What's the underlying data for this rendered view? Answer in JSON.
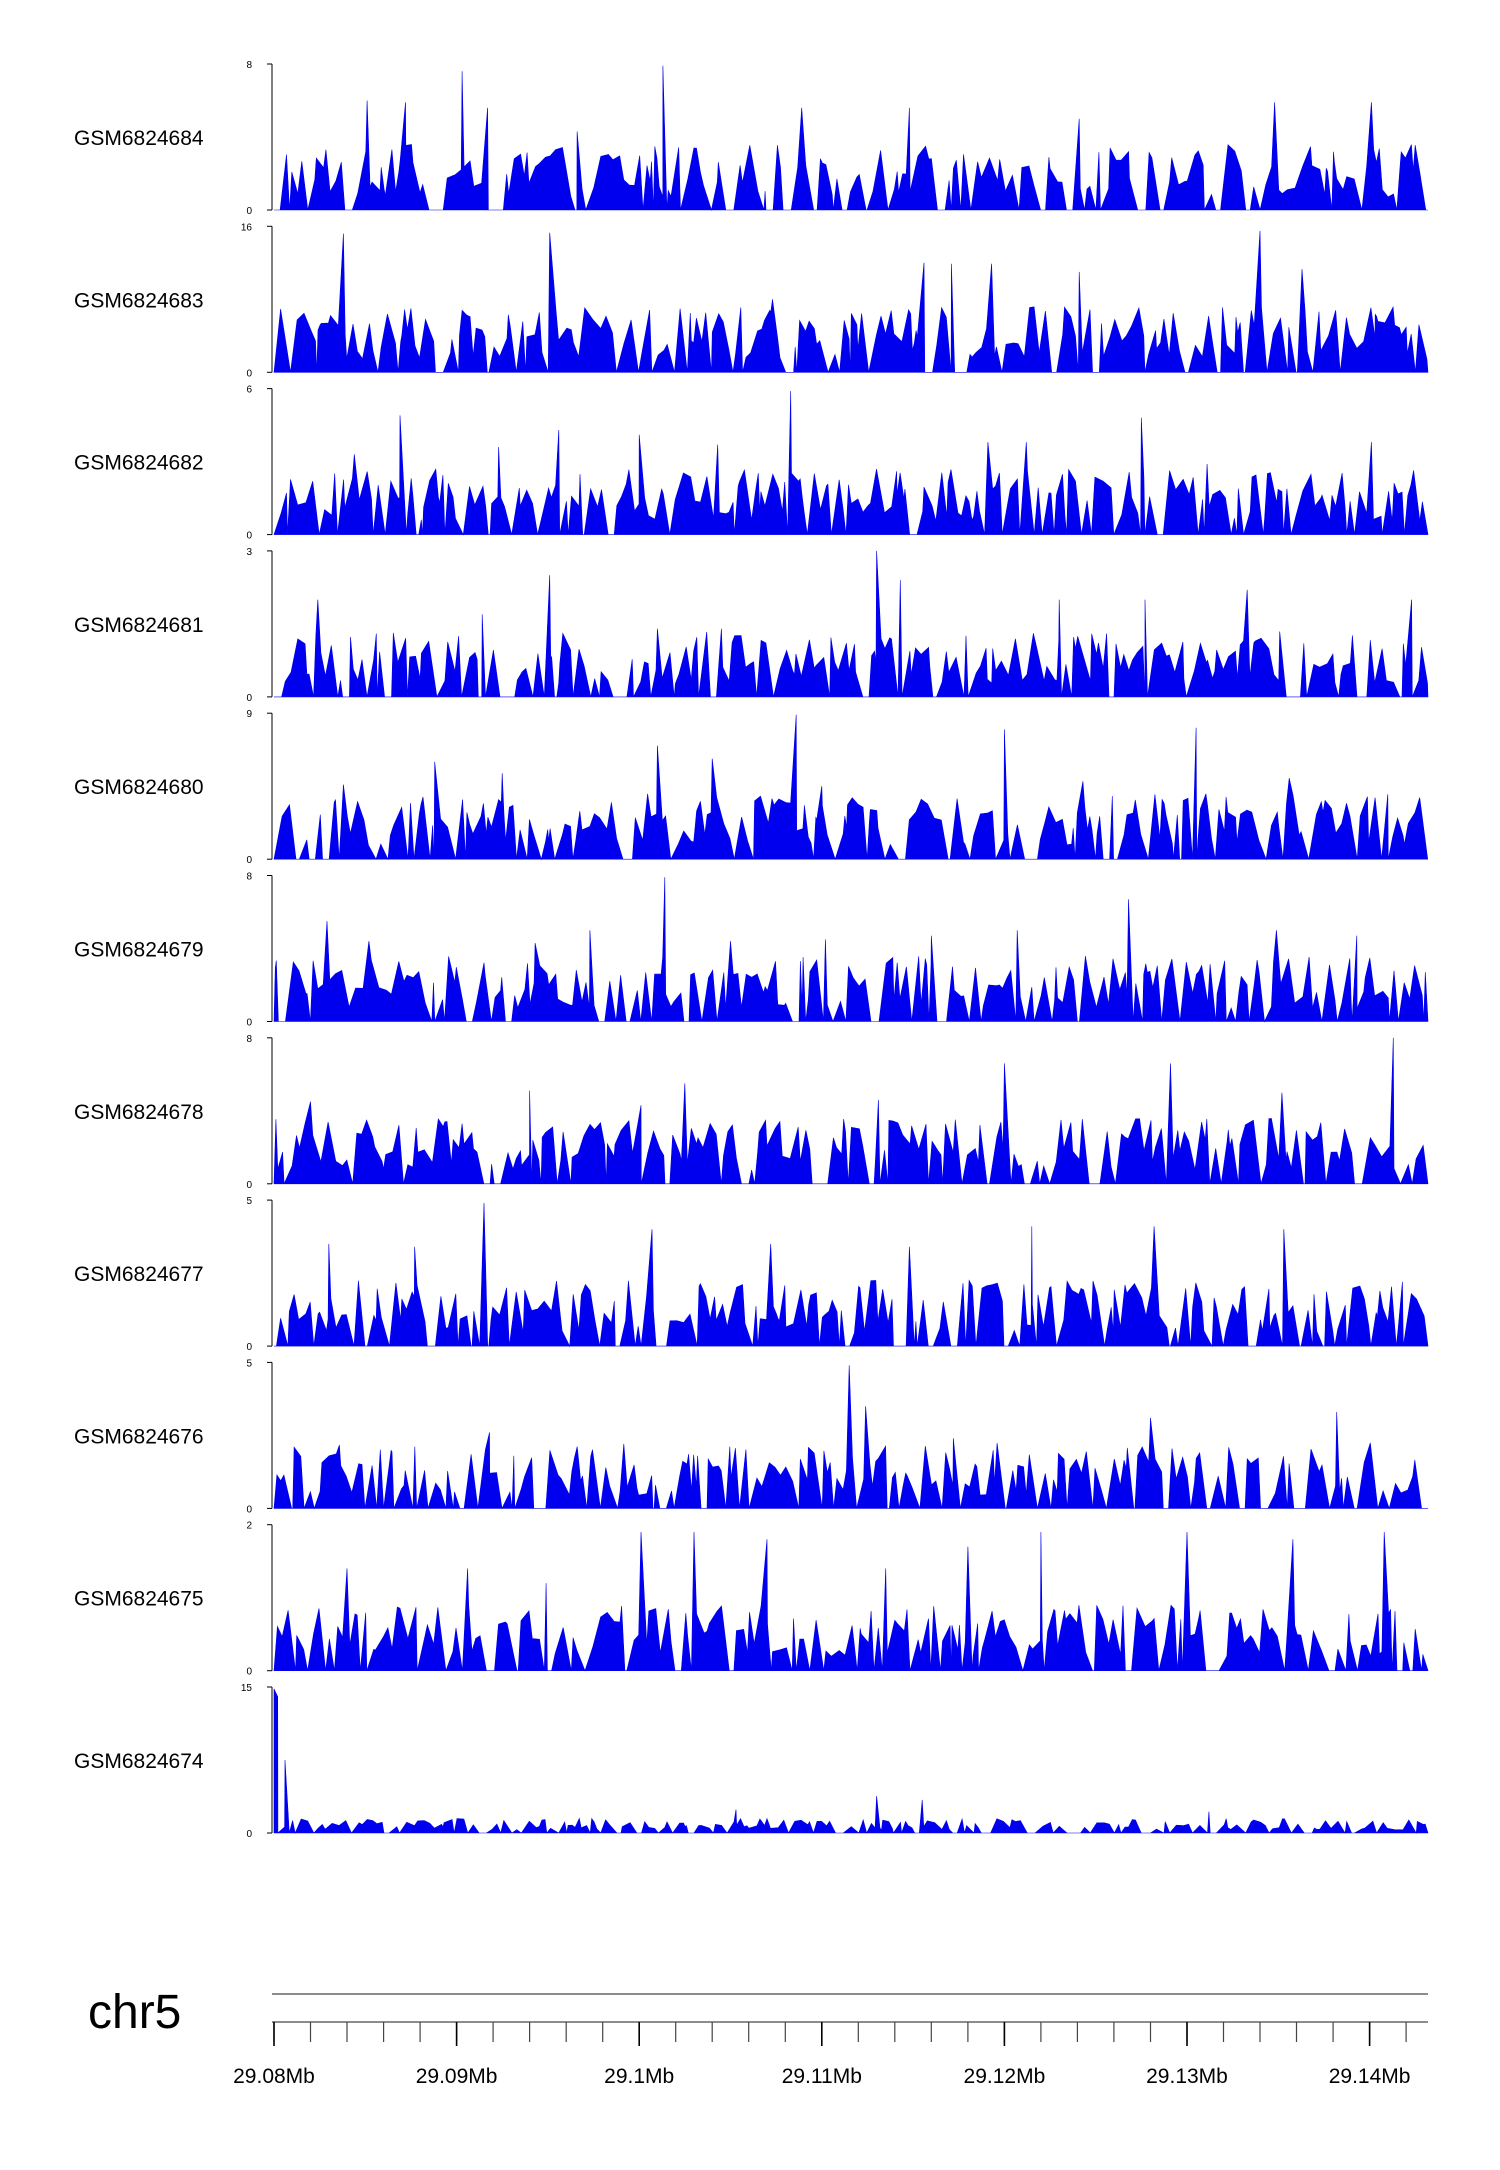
{
  "chart_data": {
    "type": "area",
    "title": "",
    "xlabel": "",
    "ylabel": "",
    "chromosome": "chr5",
    "xlim_mb": [
      29.08,
      29.1432
    ],
    "x_ticks_mb": [
      29.08,
      29.09,
      29.1,
      29.11,
      29.12,
      29.13,
      29.14
    ],
    "x_tick_labels": [
      "29.08Mb",
      "29.09Mb",
      "29.1Mb",
      "29.11Mb",
      "29.12Mb",
      "29.13Mb",
      "29.14Mb"
    ],
    "minor_tick_step_mb": 0.002,
    "fill_color": "#0000ee",
    "grid": false,
    "tracks": [
      {
        "name": "GSM6824684",
        "ymin": 0,
        "ymax": 8,
        "peaks": [
          [
            29.0851,
            6.0
          ],
          [
            29.0872,
            5.9
          ],
          [
            29.0903,
            7.6
          ],
          [
            29.0917,
            5.6
          ],
          [
            29.0966,
            4.3
          ],
          [
            29.1013,
            7.9
          ],
          [
            29.1089,
            5.6
          ],
          [
            29.1148,
            5.6
          ],
          [
            29.1241,
            5.0
          ],
          [
            29.1348,
            5.9
          ],
          [
            29.1401,
            5.9
          ]
        ]
      },
      {
        "name": "GSM6824683",
        "ymin": 0,
        "ymax": 16,
        "peaks": [
          [
            29.0838,
            15.2
          ],
          [
            29.0875,
            7.0
          ],
          [
            29.0903,
            6.8
          ],
          [
            29.0951,
            15.3
          ],
          [
            29.1028,
            6.5
          ],
          [
            29.1073,
            8.0
          ],
          [
            29.1156,
            12.0
          ],
          [
            29.1171,
            11.9
          ],
          [
            29.1193,
            11.9
          ],
          [
            29.1241,
            11.0
          ],
          [
            29.134,
            15.5
          ],
          [
            29.1363,
            11.3
          ],
          [
            29.1403,
            3.8
          ]
        ]
      },
      {
        "name": "GSM6824682",
        "ymin": 0,
        "ymax": 6,
        "peaks": [
          [
            29.0844,
            3.3
          ],
          [
            29.0869,
            4.9
          ],
          [
            29.0923,
            3.6
          ],
          [
            29.0956,
            4.3
          ],
          [
            29.1,
            4.1
          ],
          [
            29.1043,
            3.7
          ],
          [
            29.1083,
            5.9
          ],
          [
            29.1141,
            2.6
          ],
          [
            29.1191,
            3.8
          ],
          [
            29.1212,
            3.8
          ],
          [
            29.1275,
            4.8
          ],
          [
            29.1311,
            2.9
          ],
          [
            29.1401,
            3.8
          ]
        ]
      },
      {
        "name": "GSM6824681",
        "ymin": 0,
        "ymax": 3,
        "peaks": [
          [
            29.0824,
            2.0
          ],
          [
            29.0856,
            1.3
          ],
          [
            29.0914,
            1.7
          ],
          [
            29.0951,
            2.5
          ],
          [
            29.101,
            1.4
          ],
          [
            29.1045,
            1.4
          ],
          [
            29.113,
            3.0
          ],
          [
            29.1143,
            2.4
          ],
          [
            29.119,
            1.0
          ],
          [
            29.123,
            2.0
          ],
          [
            29.1277,
            2.0
          ],
          [
            29.1333,
            2.2
          ],
          [
            29.1364,
            1.1
          ],
          [
            29.1423,
            2.0
          ]
        ]
      },
      {
        "name": "GSM6824680",
        "ymin": 0,
        "ymax": 9,
        "peaks": [
          [
            29.0838,
            4.6
          ],
          [
            29.0888,
            6.0
          ],
          [
            29.0925,
            5.3
          ],
          [
            29.101,
            7.0
          ],
          [
            29.104,
            6.2
          ],
          [
            29.1086,
            8.9
          ],
          [
            29.11,
            4.5
          ],
          [
            29.12,
            8.0
          ],
          [
            29.1243,
            4.8
          ],
          [
            29.1305,
            8.1
          ],
          [
            29.1356,
            5.0
          ],
          [
            29.141,
            4.0
          ]
        ]
      },
      {
        "name": "GSM6824679",
        "ymin": 0,
        "ymax": 8,
        "peaks": [
          [
            29.0829,
            5.5
          ],
          [
            29.0852,
            4.4
          ],
          [
            29.0943,
            4.3
          ],
          [
            29.0973,
            5.0
          ],
          [
            29.1014,
            7.9
          ],
          [
            29.105,
            4.4
          ],
          [
            29.1102,
            4.5
          ],
          [
            29.116,
            4.7
          ],
          [
            29.1207,
            5.0
          ],
          [
            29.1268,
            6.7
          ],
          [
            29.1349,
            5.0
          ],
          [
            29.1393,
            4.7
          ]
        ]
      },
      {
        "name": "GSM6824678",
        "ymin": 0,
        "ymax": 8,
        "peaks": [
          [
            29.082,
            4.5
          ],
          [
            29.0903,
            3.3
          ],
          [
            29.094,
            5.1
          ],
          [
            29.1001,
            4.3
          ],
          [
            29.1025,
            5.5
          ],
          [
            29.1131,
            4.6
          ],
          [
            29.12,
            6.6
          ],
          [
            29.1231,
            3.5
          ],
          [
            29.1291,
            6.6
          ],
          [
            29.1352,
            5.0
          ],
          [
            29.1413,
            8.0
          ]
        ]
      },
      {
        "name": "GSM6824677",
        "ymin": 0,
        "ymax": 5,
        "peaks": [
          [
            29.083,
            3.5
          ],
          [
            29.0877,
            3.4
          ],
          [
            29.0915,
            4.9
          ],
          [
            29.1007,
            4.0
          ],
          [
            29.1072,
            3.5
          ],
          [
            29.1148,
            3.4
          ],
          [
            29.1215,
            4.1
          ],
          [
            29.1282,
            4.1
          ],
          [
            29.1353,
            4.0
          ],
          [
            29.1418,
            2.2
          ]
        ]
      },
      {
        "name": "GSM6824676",
        "ymin": 0,
        "ymax": 5,
        "peaks": [
          [
            29.0811,
            2.1
          ],
          [
            29.0918,
            2.6
          ],
          [
            29.1032,
            1.8
          ],
          [
            29.1115,
            4.9
          ],
          [
            29.1124,
            3.5
          ],
          [
            29.1172,
            2.4
          ],
          [
            29.128,
            3.1
          ],
          [
            29.1333,
            1.7
          ],
          [
            29.1382,
            3.3
          ]
        ]
      },
      {
        "name": "GSM6824675",
        "ymin": 0,
        "ymax": 2,
        "peaks": [
          [
            29.084,
            1.4
          ],
          [
            29.0906,
            1.4
          ],
          [
            29.0949,
            1.2
          ],
          [
            29.1001,
            1.9
          ],
          [
            29.103,
            1.9
          ],
          [
            29.107,
            1.8
          ],
          [
            29.1135,
            1.4
          ],
          [
            29.118,
            1.7
          ],
          [
            29.122,
            1.9
          ],
          [
            29.13,
            1.9
          ],
          [
            29.1358,
            1.8
          ],
          [
            29.1408,
            1.9
          ]
        ]
      },
      {
        "name": "GSM6824674",
        "ymin": 0,
        "ymax": 15,
        "peaks": [
          [
            29.08,
            14.8
          ],
          [
            29.0802,
            14.0
          ],
          [
            29.0806,
            7.5
          ],
          [
            29.1053,
            2.4
          ],
          [
            29.113,
            3.8
          ],
          [
            29.1155,
            3.4
          ],
          [
            29.1312,
            2.2
          ]
        ]
      }
    ]
  }
}
